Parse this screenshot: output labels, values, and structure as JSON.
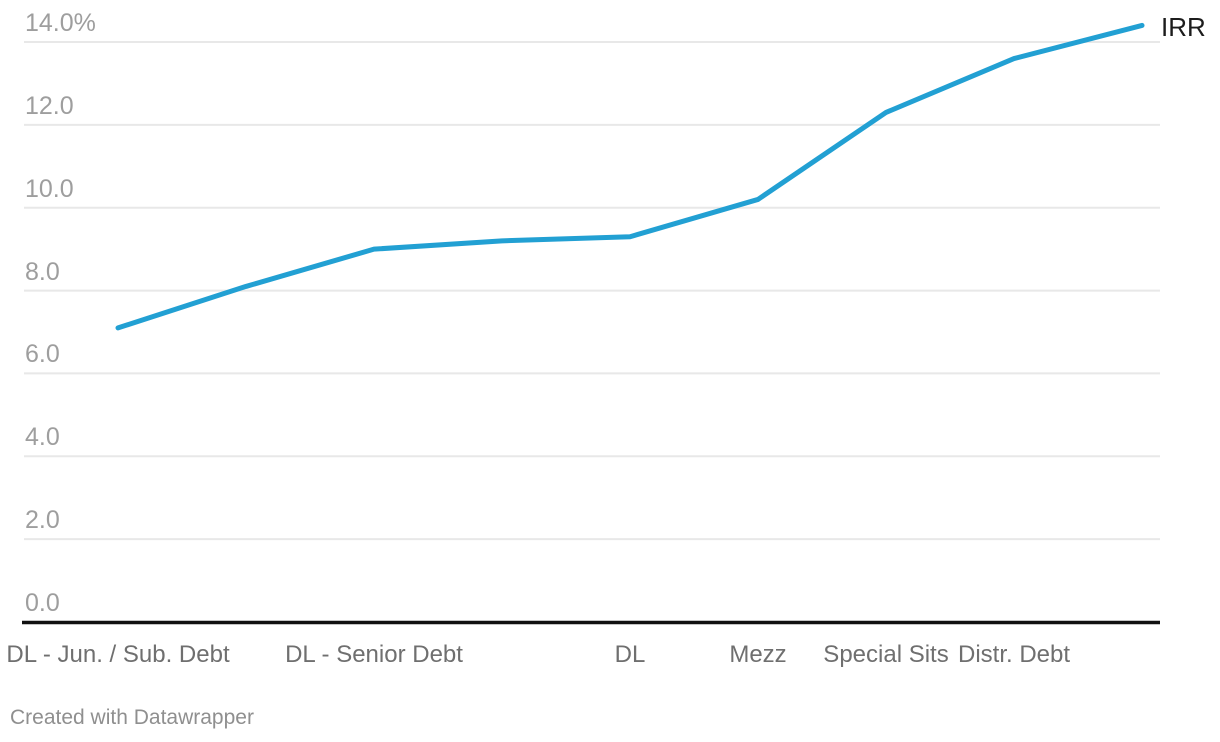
{
  "chart_data": {
    "type": "line",
    "title": "",
    "xlabel": "",
    "ylabel": "",
    "n_points": 9,
    "categories": [
      "DL - Jun. / Sub. Debt",
      "",
      "DL - Senior Debt",
      "",
      "DL",
      "Mezz",
      "Special Sits",
      "Distr. Debt",
      ""
    ],
    "series": [
      {
        "name": "IRR",
        "values": [
          7.1,
          8.1,
          9.0,
          9.2,
          9.3,
          10.2,
          12.3,
          13.6,
          14.4
        ]
      }
    ],
    "visible_x_labels": [
      {
        "index": 0,
        "label": "DL - Jun. / Sub. Debt"
      },
      {
        "index": 2,
        "label": "DL - Senior Debt"
      },
      {
        "index": 4,
        "label": "DL"
      },
      {
        "index": 5,
        "label": "Mezz"
      },
      {
        "index": 6,
        "label": "Special Sits"
      },
      {
        "index": 7,
        "label": "Distr. Debt"
      }
    ],
    "y_ticks": [
      {
        "value": 14,
        "label": "14.0%"
      },
      {
        "value": 12,
        "label": "12.0"
      },
      {
        "value": 10,
        "label": "10.0"
      },
      {
        "value": 8,
        "label": "8.0"
      },
      {
        "value": 6,
        "label": "6.0"
      },
      {
        "value": 4,
        "label": "4.0"
      },
      {
        "value": 2,
        "label": "2.0"
      },
      {
        "value": 0,
        "label": "0.0"
      }
    ],
    "ylim": [
      0,
      14
    ],
    "grid": "horizontal-only",
    "legend_position": "line-end-right",
    "series_label": "IRR"
  },
  "colors": {
    "line": "#22A0D3",
    "gridline": "#e8e8e8",
    "axis_baseline": "#111111",
    "y_tick_text": "#9e9e9e",
    "x_tick_text": "#6f6f6f",
    "series_label_text": "#1c1c1c",
    "credit_text": "#8f8f8f",
    "background": "#ffffff"
  },
  "footer": {
    "credit": "Created with Datawrapper"
  }
}
